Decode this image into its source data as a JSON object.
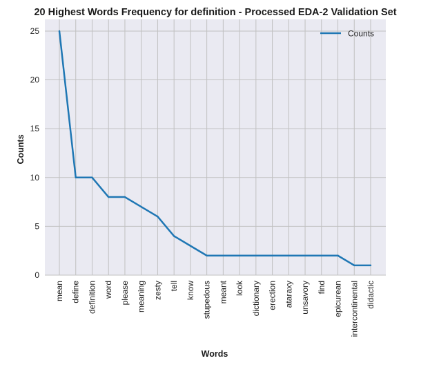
{
  "chart_data": {
    "type": "line",
    "title": "20 Highest Words Frequency for definition - Processed EDA-2 Validation Set",
    "xlabel": "Words",
    "ylabel": "Counts",
    "categories": [
      "mean",
      "define",
      "definition",
      "word",
      "please",
      "meaning",
      "zesty",
      "tell",
      "know",
      "stupedous",
      "meant",
      "look",
      "dictionary",
      "erection",
      "ataraxy",
      "unsavory",
      "find",
      "epicurean",
      "intercontinental",
      "didactic"
    ],
    "series": [
      {
        "name": "Counts",
        "values": [
          25,
          10,
          10,
          8,
          8,
          7,
          6,
          4,
          3,
          2,
          2,
          2,
          2,
          2,
          2,
          2,
          2,
          2,
          1,
          1
        ],
        "color": "#1f77b4"
      }
    ],
    "ylim": [
      0,
      26.2
    ],
    "yticks": [
      0,
      5,
      10,
      15,
      20,
      25
    ],
    "grid": true,
    "legend": "top-right",
    "background": "#eaeaf2",
    "grid_color": "#c0c0c0"
  }
}
